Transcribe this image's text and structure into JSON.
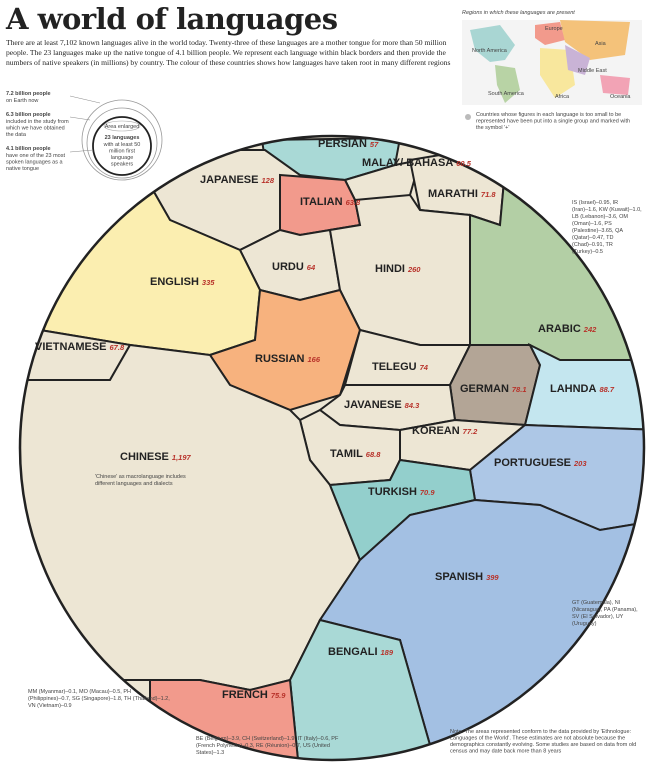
{
  "header": {
    "title": "A world of languages",
    "intro": "There are at least 7,102 known languages alive in the world today. Twenty-three of these languages are a mother tongue for more than 50 million people. The 23 languages make up the native tongue of 4.1 billion people. We represent each language within black borders and then provide the numbers of native speakers (in millions) by country. The colour of these countries shows how languages have taken root in many different regions"
  },
  "key": {
    "earth": "7.2 billion people",
    "earth_sub": "on Earth now",
    "study": "6.3 billion people",
    "study_sub": "included in the study from which we have obtained the data",
    "native": "4.1 billion people",
    "native_sub": "have one of the 23 most spoken languages as a native tongue",
    "enlarged": "Area enlarged",
    "inner": "23 languages",
    "inner_sub": "with at least 50 million first language speakers"
  },
  "map": {
    "title": "Regions in which these languages are present",
    "regions": [
      "Europe",
      "North America",
      "Asia",
      "Middle East",
      "South America",
      "Africa",
      "Oceania"
    ],
    "note": "Countries whose figures in each language is too small to be represented have been put into a single group and marked with the symbol '+'"
  },
  "languages": [
    {
      "name": "PERSIAN",
      "speakers": "57",
      "color": "#a9d9d6"
    },
    {
      "name": "MALAY/ BAHASA",
      "speakers": "60.5",
      "color": "#ede6d4"
    },
    {
      "name": "MARATHI",
      "speakers": "71.8",
      "color": "#ede6d4"
    },
    {
      "name": "JAPANESE",
      "speakers": "128",
      "color": "#ede6d4"
    },
    {
      "name": "ITALIAN",
      "speakers": "63.8",
      "color": "#f29a8c"
    },
    {
      "name": "URDU",
      "speakers": "64",
      "color": "#ede6d4"
    },
    {
      "name": "HINDI",
      "speakers": "260",
      "color": "#ede6d4"
    },
    {
      "name": "ENGLISH",
      "speakers": "335",
      "color": "#fbeeb0"
    },
    {
      "name": "ARABIC",
      "speakers": "242",
      "color": "#b3cfa5"
    },
    {
      "name": "VIETNAMESE",
      "speakers": "67.8",
      "color": "#ede6d4"
    },
    {
      "name": "RUSSIAN",
      "speakers": "166",
      "color": "#f7b27e"
    },
    {
      "name": "TELEGU",
      "speakers": "74",
      "color": "#ede6d4"
    },
    {
      "name": "GERMAN",
      "speakers": "78.1",
      "color": "#b3a596"
    },
    {
      "name": "LAHNDA",
      "speakers": "88.7",
      "color": "#c4e6ef"
    },
    {
      "name": "JAVANESE",
      "speakers": "84.3",
      "color": "#ede6d4"
    },
    {
      "name": "KOREAN",
      "speakers": "77.2",
      "color": "#ede6d4"
    },
    {
      "name": "TAMIL",
      "speakers": "68.8",
      "color": "#ede6d4"
    },
    {
      "name": "CHINESE",
      "speakers": "1,197",
      "color": "#ede6d4"
    },
    {
      "name": "PORTUGUESE",
      "speakers": "203",
      "color": "#adc7e6"
    },
    {
      "name": "TURKISH",
      "speakers": "70.9",
      "color": "#93cfcc"
    },
    {
      "name": "SPANISH",
      "speakers": "399",
      "color": "#a3c0e3"
    },
    {
      "name": "BENGALI",
      "speakers": "189",
      "color": "#a9d9d6"
    },
    {
      "name": "FRENCH",
      "speakers": "75.9",
      "color": "#f29a8c"
    }
  ],
  "chinese_note": "'Chinese' as macrolanguage includes different languages and dialects",
  "footnotes": {
    "asia": "MM (Myanmar)–0.1, MO (Macau)–0.5, PH (Philippines)–0.7, SG (Singapore)–1.8, TH (Thailand)–1.2, VN (Vietnam)–0.9",
    "europe": "BE (Belgium)–3.9, CH (Switzerland)–1.9, IT (Italy)–0.6, PF (French Polynesia)–0.3, RE (Réunion)–0.7, US (United States)–1.3",
    "arabic": "IS (Israel)–0.95, IR (Iran)–1.6, KW (Kuwait)–1.0, LB (Lebanon)–3.6, OM (Oman)–1.6, PS (Palestine)–3.65, QA (Qatar)–0.47, TD (Chad)–0.91, TR (Turkey)–0.5",
    "spanish": "GT (Guatemala), NI (Nicaragua), PA (Panama), SV (El Salvador), UY (Uruguay)",
    "note": "Note: The areas represented conform to the data provided by 'Ethnologue: Languages of the World'. These estimates are not absolute because the demographics constantly evolving. Some studies are based on data from old census and may date back more than 8 years"
  }
}
